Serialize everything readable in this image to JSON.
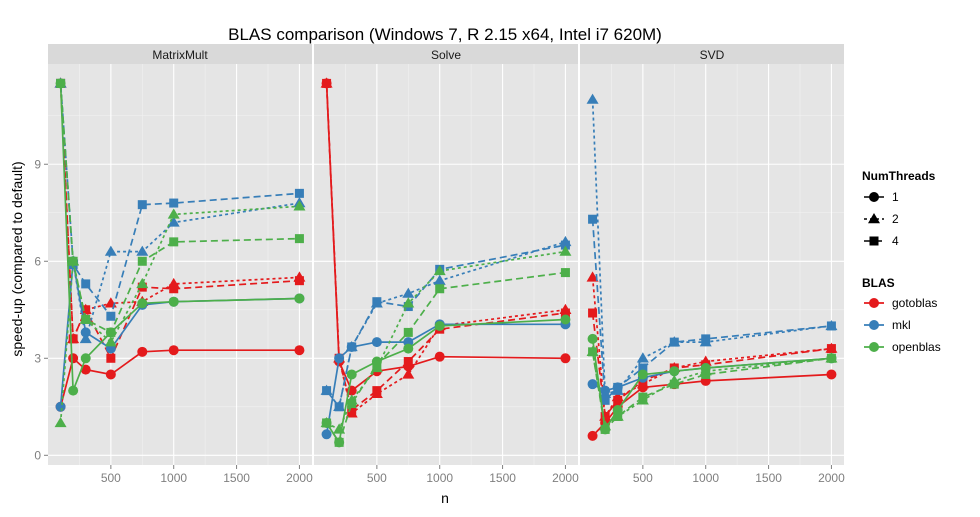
{
  "chart_data": {
    "type": "line",
    "title": "BLAS comparison (Windows 7, R 2.15 x64, Intel i7 620M)",
    "xlabel": "n",
    "ylabel": "speed-up (compared to default)",
    "xlim": [
      0,
      2100
    ],
    "ylim": [
      -0.3,
      12.1
    ],
    "x_ticks": [
      500,
      1000,
      1500,
      2000
    ],
    "y_ticks": [
      0,
      3,
      6,
      9
    ],
    "grid": true,
    "legend_position": "right",
    "legend": {
      "threads_title": "NumThreads",
      "threads": [
        "1",
        "2",
        "4"
      ],
      "blas_title": "BLAS",
      "blas": [
        "gotoblas",
        "mkl",
        "openblas"
      ]
    },
    "colors": {
      "gotoblas": "#e41a1c",
      "mkl": "#377eb8",
      "openblas": "#4daf4a"
    },
    "panels": [
      {
        "name": "MatrixMult",
        "series": [
          {
            "blas": "gotoblas",
            "threads": "1",
            "x": [
              100,
              200,
              300,
              500,
              750,
              1000,
              2000
            ],
            "y": [
              1.5,
              3.0,
              2.65,
              2.5,
              3.2,
              3.25,
              3.25
            ]
          },
          {
            "blas": "gotoblas",
            "threads": "2",
            "x": [
              100,
              200,
              300,
              500,
              750,
              1000,
              2000
            ],
            "y": [
              11.5,
              3.6,
              4.5,
              4.7,
              4.75,
              5.3,
              5.5
            ]
          },
          {
            "blas": "gotoblas",
            "threads": "4",
            "x": [
              100,
              200,
              300,
              500,
              750,
              1000,
              2000
            ],
            "y": [
              11.5,
              3.6,
              4.5,
              3.0,
              5.2,
              5.15,
              5.4
            ]
          },
          {
            "blas": "mkl",
            "threads": "1",
            "x": [
              100,
              200,
              300,
              500,
              750,
              1000,
              2000
            ],
            "y": [
              1.5,
              6.0,
              3.8,
              3.3,
              4.65,
              4.75,
              4.85
            ]
          },
          {
            "blas": "mkl",
            "threads": "2",
            "x": [
              100,
              200,
              300,
              500,
              750,
              1000,
              2000
            ],
            "y": [
              11.5,
              6.0,
              3.6,
              6.3,
              6.3,
              7.2,
              7.8
            ]
          },
          {
            "blas": "mkl",
            "threads": "4",
            "x": [
              100,
              200,
              300,
              500,
              750,
              1000,
              2000
            ],
            "y": [
              11.5,
              5.9,
              5.3,
              4.3,
              7.75,
              7.8,
              8.1
            ]
          },
          {
            "blas": "openblas",
            "threads": "1",
            "x": [
              100,
              200,
              300,
              500,
              750,
              1000,
              2000
            ],
            "y": [
              11.5,
              2.0,
              3.0,
              3.8,
              4.7,
              4.75,
              4.85
            ]
          },
          {
            "blas": "openblas",
            "threads": "2",
            "x": [
              100,
              200,
              300,
              500,
              750,
              1000,
              2000
            ],
            "y": [
              1.0,
              6.0,
              4.2,
              3.5,
              5.3,
              7.45,
              7.7
            ]
          },
          {
            "blas": "openblas",
            "threads": "4",
            "x": [
              100,
              200,
              300,
              500,
              750,
              1000,
              2000
            ],
            "y": [
              11.5,
              6.0,
              4.2,
              3.8,
              6.0,
              6.6,
              6.7
            ]
          }
        ]
      },
      {
        "name": "Solve",
        "series": [
          {
            "blas": "gotoblas",
            "threads": "1",
            "x": [
              100,
              200,
              300,
              500,
              750,
              1000,
              2000
            ],
            "y": [
              11.5,
              2.9,
              2.0,
              2.6,
              2.75,
              3.05,
              3.0
            ]
          },
          {
            "blas": "gotoblas",
            "threads": "2",
            "x": [
              100,
              200,
              300,
              500,
              750,
              1000,
              2000
            ],
            "y": [
              11.5,
              3.0,
              1.3,
              1.9,
              2.5,
              4.0,
              4.5
            ]
          },
          {
            "blas": "gotoblas",
            "threads": "4",
            "x": [
              100,
              200,
              300,
              500,
              750,
              1000,
              2000
            ],
            "y": [
              11.5,
              3.0,
              1.4,
              2.0,
              2.9,
              3.9,
              4.4
            ]
          },
          {
            "blas": "mkl",
            "threads": "1",
            "x": [
              100,
              200,
              300,
              500,
              750,
              1000,
              2000
            ],
            "y": [
              0.65,
              3.0,
              3.35,
              3.5,
              3.5,
              4.05,
              4.05
            ]
          },
          {
            "blas": "mkl",
            "threads": "2",
            "x": [
              100,
              200,
              300,
              500,
              750,
              1000,
              2000
            ],
            "y": [
              2.0,
              1.5,
              3.35,
              4.7,
              5.0,
              5.4,
              6.6
            ]
          },
          {
            "blas": "mkl",
            "threads": "4",
            "x": [
              100,
              200,
              300,
              500,
              750,
              1000,
              2000
            ],
            "y": [
              2.0,
              1.5,
              3.35,
              4.75,
              4.6,
              5.75,
              6.5
            ]
          },
          {
            "blas": "openblas",
            "threads": "1",
            "x": [
              100,
              200,
              300,
              500,
              750,
              1000,
              2000
            ],
            "y": [
              1.0,
              0.4,
              2.5,
              2.9,
              3.3,
              4.0,
              4.2
            ]
          },
          {
            "blas": "openblas",
            "threads": "2",
            "x": [
              100,
              200,
              300,
              500,
              750,
              1000,
              2000
            ],
            "y": [
              1.0,
              0.8,
              1.7,
              2.7,
              4.7,
              5.7,
              6.3
            ]
          },
          {
            "blas": "openblas",
            "threads": "4",
            "x": [
              100,
              200,
              300,
              500,
              750,
              1000,
              2000
            ],
            "y": [
              1.0,
              0.4,
              1.6,
              2.8,
              3.8,
              5.15,
              5.65
            ]
          }
        ]
      },
      {
        "name": "SVD",
        "series": [
          {
            "blas": "gotoblas",
            "threads": "1",
            "x": [
              100,
              200,
              300,
              500,
              750,
              1000,
              2000
            ],
            "y": [
              0.6,
              1.0,
              1.5,
              2.1,
              2.2,
              2.3,
              2.5
            ]
          },
          {
            "blas": "gotoblas",
            "threads": "2",
            "x": [
              100,
              200,
              300,
              500,
              750,
              1000,
              2000
            ],
            "y": [
              5.5,
              1.2,
              1.8,
              2.2,
              2.7,
              2.9,
              3.3
            ]
          },
          {
            "blas": "gotoblas",
            "threads": "4",
            "x": [
              100,
              200,
              300,
              500,
              750,
              1000,
              2000
            ],
            "y": [
              4.4,
              1.2,
              1.7,
              2.3,
              2.7,
              2.8,
              3.3
            ]
          },
          {
            "blas": "mkl",
            "threads": "1",
            "x": [
              100,
              200,
              300,
              500,
              750,
              1000,
              2000
            ],
            "y": [
              2.2,
              2.0,
              2.1,
              2.4,
              2.6,
              2.7,
              3.0
            ]
          },
          {
            "blas": "mkl",
            "threads": "2",
            "x": [
              100,
              200,
              300,
              500,
              750,
              1000,
              2000
            ],
            "y": [
              11.0,
              1.9,
              2.0,
              3.0,
              3.5,
              3.5,
              4.0
            ]
          },
          {
            "blas": "mkl",
            "threads": "4",
            "x": [
              100,
              200,
              300,
              500,
              750,
              1000,
              2000
            ],
            "y": [
              7.3,
              1.7,
              2.1,
              2.7,
              3.5,
              3.6,
              4.0
            ]
          },
          {
            "blas": "openblas",
            "threads": "1",
            "x": [
              100,
              200,
              300,
              500,
              750,
              1000,
              2000
            ],
            "y": [
              3.6,
              0.8,
              1.4,
              2.5,
              2.6,
              2.7,
              3.0
            ]
          },
          {
            "blas": "openblas",
            "threads": "2",
            "x": [
              100,
              200,
              300,
              500,
              750,
              1000,
              2000
            ],
            "y": [
              3.2,
              0.9,
              1.2,
              1.7,
              2.3,
              2.6,
              3.0
            ]
          },
          {
            "blas": "openblas",
            "threads": "4",
            "x": [
              100,
              200,
              300,
              500,
              750,
              1000,
              2000
            ],
            "y": [
              3.2,
              0.8,
              1.2,
              1.8,
              2.2,
              2.5,
              3.0
            ]
          }
        ]
      }
    ]
  }
}
